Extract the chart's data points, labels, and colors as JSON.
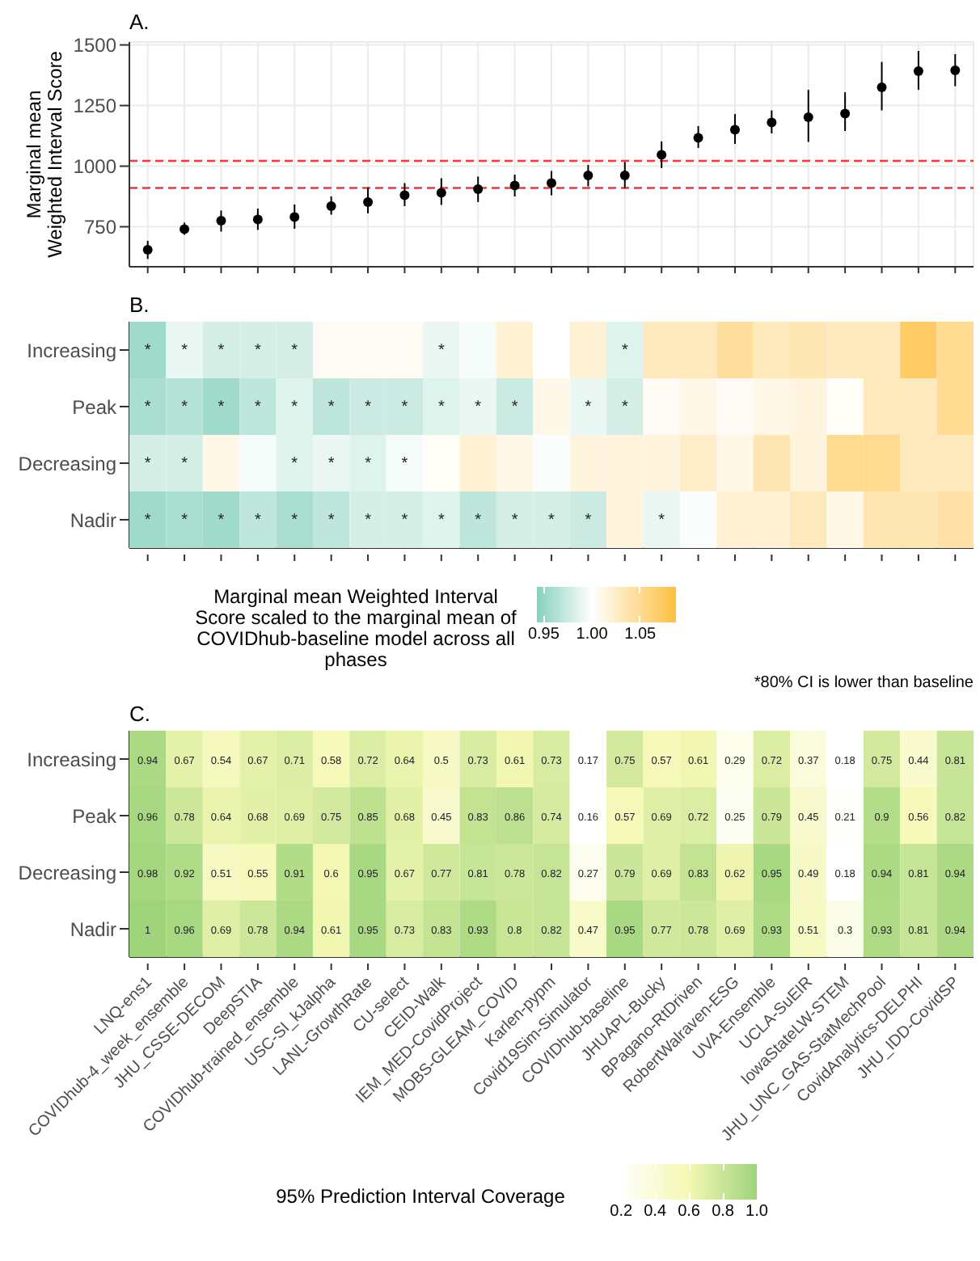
{
  "chart_data": [
    {
      "type": "scatter",
      "title": "A.",
      "ylabel": "Marginal mean Weighted Interval Score",
      "categories": [
        null,
        null,
        null,
        null,
        null,
        null,
        null,
        null,
        null,
        null,
        null,
        null,
        null,
        null,
        null,
        null,
        null,
        null,
        null,
        null,
        null,
        null,
        null
      ],
      "values": [
        655,
        740,
        775,
        780,
        790,
        835,
        852,
        880,
        890,
        905,
        920,
        930,
        962,
        962,
        1047,
        1117,
        1150,
        1180,
        1202,
        1217,
        1325,
        1392,
        1395
      ],
      "errors": [
        [
          617,
          692
        ],
        [
          717,
          767
        ],
        [
          730,
          817
        ],
        [
          737,
          825
        ],
        [
          742,
          842
        ],
        [
          800,
          875
        ],
        [
          805,
          912
        ],
        [
          835,
          930
        ],
        [
          840,
          950
        ],
        [
          852,
          957
        ],
        [
          875,
          965
        ],
        [
          880,
          980
        ],
        [
          917,
          1005
        ],
        [
          910,
          1017
        ],
        [
          992,
          1102
        ],
        [
          1075,
          1165
        ],
        [
          1092,
          1215
        ],
        [
          1135,
          1230
        ],
        [
          1100,
          1315
        ],
        [
          1145,
          1305
        ],
        [
          1230,
          1430
        ],
        [
          1315,
          1475
        ],
        [
          1330,
          1462
        ]
      ],
      "color": "#000000",
      "marker": "circle",
      "ylim": [
        585,
        1512
      ],
      "yticks": [
        750,
        1000,
        1250,
        1500
      ],
      "grid": true,
      "tick_labels": "y",
      "ref_lines": [
        {
          "axis": "y",
          "value": 1022,
          "color": "#ff3333",
          "line_style": "dashed"
        },
        {
          "axis": "y",
          "value": 910,
          "color": "#ff3333",
          "line_style": "dashed"
        }
      ]
    },
    {
      "type": "heatmap",
      "title": "B.",
      "categories": [
        null,
        null,
        null,
        null,
        null,
        null,
        null,
        null,
        null,
        null,
        null,
        null,
        null,
        null,
        null,
        null,
        null,
        null,
        null,
        null,
        null,
        null,
        null
      ],
      "y_categories": [
        "Increasing",
        "Peak",
        "Decreasing",
        "Nadir"
      ],
      "cells": [
        [
          0.955,
          0.99,
          0.98,
          0.98,
          0.98,
          1.005,
          1.005,
          1.005,
          0.99,
          0.995,
          1.02,
          1.0,
          1.02,
          0.985,
          1.03,
          1.03,
          1.045,
          1.03,
          1.035,
          1.03,
          1.03,
          1.07,
          1.05
        ],
        [
          0.96,
          0.965,
          0.955,
          0.97,
          0.985,
          0.97,
          0.975,
          0.975,
          0.985,
          0.99,
          0.975,
          1.01,
          0.99,
          0.98,
          1.005,
          1.01,
          1.005,
          1.01,
          1.015,
          1.003,
          1.03,
          1.03,
          1.05
        ],
        [
          0.98,
          0.98,
          1.01,
          0.995,
          0.985,
          0.99,
          0.985,
          0.995,
          1.003,
          1.02,
          1.01,
          0.998,
          1.015,
          1.015,
          1.015,
          1.025,
          1.01,
          1.035,
          1.015,
          1.05,
          1.05,
          1.03,
          1.03
        ],
        [
          0.955,
          0.96,
          0.955,
          0.97,
          0.96,
          0.97,
          0.98,
          0.98,
          0.985,
          0.97,
          0.98,
          0.98,
          0.975,
          1.015,
          0.99,
          0.998,
          1.02,
          1.02,
          1.03,
          1.01,
          1.035,
          1.035,
          1.04
        ]
      ],
      "cell_labels": [
        [
          "*",
          "*",
          "*",
          "*",
          "*",
          null,
          null,
          null,
          "*",
          null,
          null,
          null,
          null,
          "*",
          null,
          null,
          null,
          null,
          null,
          null,
          null,
          null,
          null
        ],
        [
          "*",
          "*",
          "*",
          "*",
          "*",
          "*",
          "*",
          "*",
          "*",
          "*",
          "*",
          null,
          "*",
          "*",
          null,
          null,
          null,
          null,
          null,
          null,
          null,
          null,
          null
        ],
        [
          "*",
          "*",
          null,
          null,
          "*",
          "*",
          "*",
          "*",
          null,
          null,
          null,
          null,
          null,
          null,
          null,
          null,
          null,
          null,
          null,
          null,
          null,
          null,
          null
        ],
        [
          "*",
          "*",
          "*",
          "*",
          "*",
          "*",
          "*",
          "*",
          "*",
          "*",
          "*",
          "*",
          "*",
          null,
          "*",
          null,
          null,
          null,
          null,
          null,
          null,
          null,
          null
        ]
      ],
      "clim": [
        0.943,
        1.087
      ],
      "cticks": [
        0.95,
        {
          "value": 1,
          "label": "1.00"
        },
        1.05
      ],
      "clabel": "Marginal mean Weighted Interval Score scaled to the marginal mean of COVIDhub-baseline model across all phases",
      "tick_labels": "y",
      "annotations": [
        "*80% CI is lower than baseline"
      ]
    },
    {
      "type": "heatmap",
      "title": "C.",
      "categories": [
        "LNQ-ens1",
        "COVIDhub-4_week_ensemble",
        "JHU_CSSE-DECOM",
        "DeepSTIA",
        "COVIDhub-trained_ensemble",
        "USC-SI_kJalpha",
        "LANL-GrowthRate",
        "CU-select",
        "CEID-Walk",
        "IEM_MED-CovidProject",
        "MOBS-GLEAM_COVID",
        "Karlen-pypm",
        "Covid19Sim-Simulator",
        "COVIDhub-baseline",
        "JHUAPL-Bucky",
        "BPagano-RtDriven",
        "RobertWalraven-ESG",
        "UVA-Ensemble",
        "UCLA-SuEIR",
        "IowaStateLW-STEM",
        "JHU_UNC_GAS-StatMechPool",
        "CovidAnalytics-DELPHI",
        "JHU_IDD-CovidSP"
      ],
      "y_categories": [
        "Increasing",
        "Peak",
        "Decreasing",
        "Nadir"
      ],
      "cells": [
        [
          0.94,
          0.67,
          0.54,
          0.67,
          0.71,
          0.58,
          0.72,
          0.64,
          0.5,
          0.73,
          0.61,
          0.73,
          0.17,
          0.75,
          0.57,
          0.61,
          0.29,
          0.72,
          0.37,
          0.18,
          0.75,
          0.44,
          0.81
        ],
        [
          0.96,
          0.78,
          0.64,
          0.68,
          0.69,
          0.75,
          0.85,
          0.68,
          0.45,
          0.83,
          0.86,
          0.74,
          0.16,
          0.57,
          0.69,
          0.72,
          0.25,
          0.79,
          0.45,
          0.21,
          0.9,
          0.56,
          0.82
        ],
        [
          0.98,
          0.92,
          0.51,
          0.55,
          0.91,
          0.6,
          0.95,
          0.67,
          0.77,
          0.81,
          0.78,
          0.82,
          0.27,
          0.79,
          0.69,
          0.83,
          0.62,
          0.95,
          0.49,
          0.18,
          0.94,
          0.81,
          0.94
        ],
        [
          1,
          0.96,
          0.69,
          0.78,
          0.94,
          0.61,
          0.95,
          0.73,
          0.83,
          0.93,
          0.8,
          0.82,
          0.47,
          0.95,
          0.77,
          0.78,
          0.69,
          0.93,
          0.51,
          0.3,
          0.93,
          0.81,
          0.94
        ]
      ],
      "data_labels": true,
      "clim": [
        0.18,
        1.0
      ],
      "cticks": [
        0.2,
        0.4,
        0.6,
        0.8,
        {
          "value": 1,
          "label": "1.0"
        }
      ],
      "clabel": "95% Prediction Interval Coverage"
    }
  ]
}
